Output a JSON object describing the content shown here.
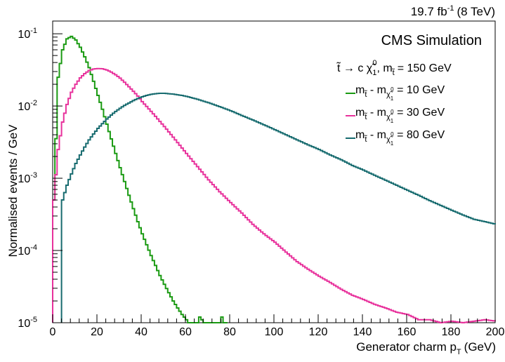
{
  "chart_data": {
    "type": "line",
    "top_right_label": {
      "lumi": "19.7 fb",
      "sup": "-1",
      "energy": "(8 TeV)"
    },
    "header": "CMS Simulation",
    "xlabel": {
      "main": "Generator charm p",
      "sub": "T",
      "unit": "(GeV)"
    },
    "ylabel": "Normalised events / GeV",
    "xlim": [
      0,
      200
    ],
    "ylim": [
      1e-05,
      0.15
    ],
    "log_y": true,
    "grid": false,
    "legend_placement": "top-right",
    "x_ticks": [
      0,
      20,
      40,
      60,
      80,
      100,
      120,
      140,
      160,
      180,
      200
    ],
    "y_ticks": [
      {
        "value": 1e-05,
        "base": "10",
        "exp": "-5"
      },
      {
        "value": 0.0001,
        "base": "10",
        "exp": "-4"
      },
      {
        "value": 0.001,
        "base": "10",
        "exp": "-3"
      },
      {
        "value": 0.01,
        "base": "10",
        "exp": "-2"
      },
      {
        "value": 0.1,
        "base": "10",
        "exp": "-1"
      }
    ],
    "legend_header": {
      "left": "t̃ → c χ̃",
      "left_sub": "1",
      "left_sup": "0",
      "right": ", m",
      "right_sub": "t̃",
      "right_value": "= 150 GeV"
    },
    "series": [
      {
        "name": "m_t̃ - m_χ̃1⁰ = 10 GeV",
        "label_parts": {
          "a": "m",
          "a_sub": "t̃",
          "mid": " - m",
          "b_sub": "χ̃",
          "b_subsub": "1",
          "b_sup": "0",
          "value": "= 10 GeV"
        },
        "color": "#1a9a12",
        "points": [
          [
            0,
            0.0005
          ],
          [
            2,
            0.025
          ],
          [
            4,
            0.06
          ],
          [
            6,
            0.085
          ],
          [
            8,
            0.092
          ],
          [
            10,
            0.082
          ],
          [
            12,
            0.065
          ],
          [
            14,
            0.048
          ],
          [
            16,
            0.034
          ],
          [
            18,
            0.022
          ],
          [
            20,
            0.014
          ],
          [
            22,
            0.009
          ],
          [
            24,
            0.0056
          ],
          [
            26,
            0.0035
          ],
          [
            28,
            0.0022
          ],
          [
            30,
            0.0014
          ],
          [
            32,
            0.0009
          ],
          [
            34,
            0.00058
          ],
          [
            36,
            0.00038
          ],
          [
            38,
            0.00025
          ],
          [
            40,
            0.00017
          ],
          [
            42,
            0.00012
          ],
          [
            44,
            8.5e-05
          ],
          [
            46,
            6.2e-05
          ],
          [
            48,
            4.5e-05
          ],
          [
            50,
            3.4e-05
          ],
          [
            52,
            2.6e-05
          ],
          [
            54,
            2e-05
          ],
          [
            56,
            1.6e-05
          ],
          [
            58,
            1.3e-05
          ],
          [
            60,
            1.1e-05
          ],
          [
            62,
            9e-06
          ],
          [
            64,
            7.5e-06
          ],
          [
            66,
            1.2e-05
          ],
          [
            68,
            1e-05
          ],
          [
            70,
            8e-06
          ],
          [
            72,
            9.5e-06
          ],
          [
            74,
            7e-06
          ],
          [
            76,
            1.2e-05
          ],
          [
            78,
            6.5e-06
          ]
        ]
      },
      {
        "name": "m_t̃ - m_χ̃1⁰ = 30 GeV",
        "label_parts": {
          "a": "m",
          "a_sub": "t̃",
          "mid": " - m",
          "b_sub": "χ̃",
          "b_subsub": "1",
          "b_sup": "0",
          "value": "= 30 GeV"
        },
        "color": "#e8329c",
        "points": [
          [
            0,
            0.0005
          ],
          [
            2,
            0.0025
          ],
          [
            4,
            0.006
          ],
          [
            6,
            0.0105
          ],
          [
            8,
            0.0155
          ],
          [
            10,
            0.02
          ],
          [
            12,
            0.0245
          ],
          [
            14,
            0.028
          ],
          [
            16,
            0.031
          ],
          [
            18,
            0.0325
          ],
          [
            20,
            0.033
          ],
          [
            22,
            0.0328
          ],
          [
            24,
            0.0315
          ],
          [
            26,
            0.0295
          ],
          [
            28,
            0.027
          ],
          [
            30,
            0.0243
          ],
          [
            32,
            0.0213
          ],
          [
            34,
            0.0185
          ],
          [
            36,
            0.016
          ],
          [
            38,
            0.0137
          ],
          [
            40,
            0.0115
          ],
          [
            45,
            0.0078
          ],
          [
            50,
            0.0052
          ],
          [
            55,
            0.0034
          ],
          [
            60,
            0.0022
          ],
          [
            65,
            0.00145
          ],
          [
            70,
            0.00095
          ],
          [
            75,
            0.00065
          ],
          [
            80,
            0.00046
          ],
          [
            85,
            0.00033
          ],
          [
            90,
            0.00023
          ],
          [
            95,
            0.00017
          ],
          [
            100,
            0.00013
          ],
          [
            105,
            9.5e-05
          ],
          [
            110,
            7e-05
          ],
          [
            115,
            5.5e-05
          ],
          [
            120,
            4.4e-05
          ],
          [
            125,
            3.6e-05
          ],
          [
            130,
            2.9e-05
          ],
          [
            135,
            2.4e-05
          ],
          [
            140,
            2.1e-05
          ],
          [
            145,
            1.8e-05
          ],
          [
            150,
            1.6e-05
          ],
          [
            155,
            1.4e-05
          ],
          [
            160,
            1.3e-05
          ],
          [
            165,
            1.1e-05
          ],
          [
            170,
            1.1e-05
          ],
          [
            175,
            1e-05
          ],
          [
            180,
            1.05e-05
          ],
          [
            185,
            1e-05
          ],
          [
            190,
            1.05e-05
          ],
          [
            195,
            1.1e-05
          ],
          [
            200,
            1.05e-05
          ]
        ]
      },
      {
        "name": "m_t̃ - m_χ̃1⁰ = 80 GeV",
        "label_parts": {
          "a": "m",
          "a_sub": "t̃",
          "mid": " - m",
          "b_sub": "χ̃",
          "b_subsub": "1",
          "b_sup": "0",
          "value": "= 80 GeV"
        },
        "color": "#176b6f",
        "points": [
          [
            4,
            0.0005
          ],
          [
            6,
            0.0008
          ],
          [
            8,
            0.00115
          ],
          [
            10,
            0.0016
          ],
          [
            12,
            0.0021
          ],
          [
            14,
            0.0027
          ],
          [
            16,
            0.0034
          ],
          [
            18,
            0.0041
          ],
          [
            20,
            0.0049
          ],
          [
            22,
            0.0057
          ],
          [
            24,
            0.0066
          ],
          [
            26,
            0.0075
          ],
          [
            28,
            0.0084
          ],
          [
            30,
            0.0093
          ],
          [
            32,
            0.0102
          ],
          [
            34,
            0.011
          ],
          [
            36,
            0.0119
          ],
          [
            38,
            0.0127
          ],
          [
            40,
            0.0134
          ],
          [
            42,
            0.014
          ],
          [
            44,
            0.0145
          ],
          [
            46,
            0.0148
          ],
          [
            48,
            0.015
          ],
          [
            50,
            0.015
          ],
          [
            52,
            0.0148
          ],
          [
            54,
            0.0146
          ],
          [
            56,
            0.0143
          ],
          [
            58,
            0.014
          ],
          [
            60,
            0.0136
          ],
          [
            65,
            0.0124
          ],
          [
            70,
            0.0111
          ],
          [
            75,
            0.0098
          ],
          [
            80,
            0.0086
          ],
          [
            85,
            0.0074
          ],
          [
            90,
            0.0064
          ],
          [
            95,
            0.0055
          ],
          [
            100,
            0.0047
          ],
          [
            105,
            0.004
          ],
          [
            110,
            0.0034
          ],
          [
            115,
            0.0029
          ],
          [
            120,
            0.0025
          ],
          [
            125,
            0.0021
          ],
          [
            130,
            0.0018
          ],
          [
            135,
            0.0015
          ],
          [
            140,
            0.0013
          ],
          [
            145,
            0.0011
          ],
          [
            150,
            0.00094
          ],
          [
            155,
            0.0008
          ],
          [
            160,
            0.00068
          ],
          [
            165,
            0.00058
          ],
          [
            170,
            0.00049
          ],
          [
            175,
            0.00042
          ],
          [
            180,
            0.00036
          ],
          [
            185,
            0.00031
          ],
          [
            190,
            0.00027
          ],
          [
            195,
            0.00025
          ],
          [
            200,
            0.00023
          ]
        ]
      }
    ]
  }
}
